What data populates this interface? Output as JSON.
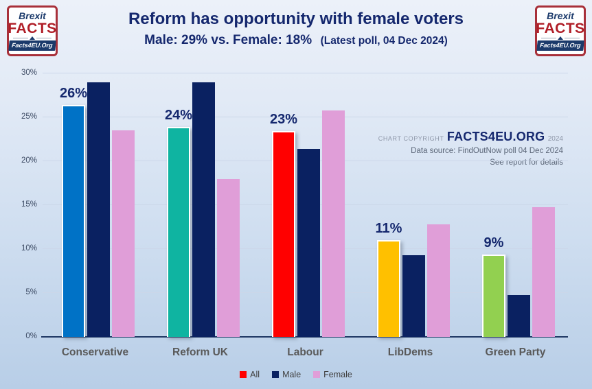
{
  "logo": {
    "line1": "Brexit",
    "line2": "FACTS",
    "line3": "Facts4EU.Org"
  },
  "header": {
    "title": "Reform has opportunity with female voters",
    "subtitle_main": "Male: 29% vs. Female: 18%",
    "subtitle_note": "(Latest poll, 04 Dec 2024)"
  },
  "copyright": {
    "prefix": "CHART COPYRIGHT",
    "brand": "FACTS4EU.ORG",
    "year": "2024",
    "line2": "Data source: FindOutNow poll 04 Dec 2024",
    "line3": "See report for details"
  },
  "chart_data": {
    "type": "bar",
    "title": "Reform has opportunity with female voters",
    "categories": [
      "Conservative",
      "Reform UK",
      "Labour",
      "LibDems",
      "Green Party"
    ],
    "series": [
      {
        "name": "All",
        "values": [
          26.4,
          23.9,
          23.4,
          11.0,
          9.4
        ],
        "colors": [
          "#0072C6",
          "#0FB4A1",
          "#FF0000",
          "#FFC000",
          "#92D050"
        ]
      },
      {
        "name": "Male",
        "values": [
          29.0,
          29.0,
          21.4,
          9.3,
          4.8
        ],
        "color": "#0A2161"
      },
      {
        "name": "Female",
        "values": [
          23.5,
          18.0,
          25.8,
          12.8,
          14.8
        ],
        "color": "#E09ED8"
      }
    ],
    "bar_labels": [
      "26%",
      "24%",
      "23%",
      "11%",
      "9%"
    ],
    "ylim": [
      0,
      30
    ],
    "ytick_step": 5,
    "yticks": [
      "0%",
      "5%",
      "10%",
      "15%",
      "20%",
      "25%",
      "30%"
    ],
    "grid": true,
    "legend_position": "bottom",
    "legend": [
      {
        "label": "All",
        "color": "#FF0000"
      },
      {
        "label": "Male",
        "color": "#0A2161"
      },
      {
        "label": "Female",
        "color": "#E09ED8"
      }
    ],
    "colors": {
      "axis_line": "#1F3864",
      "gridline": "#CBD7E9",
      "data_label": "#15286E",
      "category_label": "#595959"
    }
  }
}
